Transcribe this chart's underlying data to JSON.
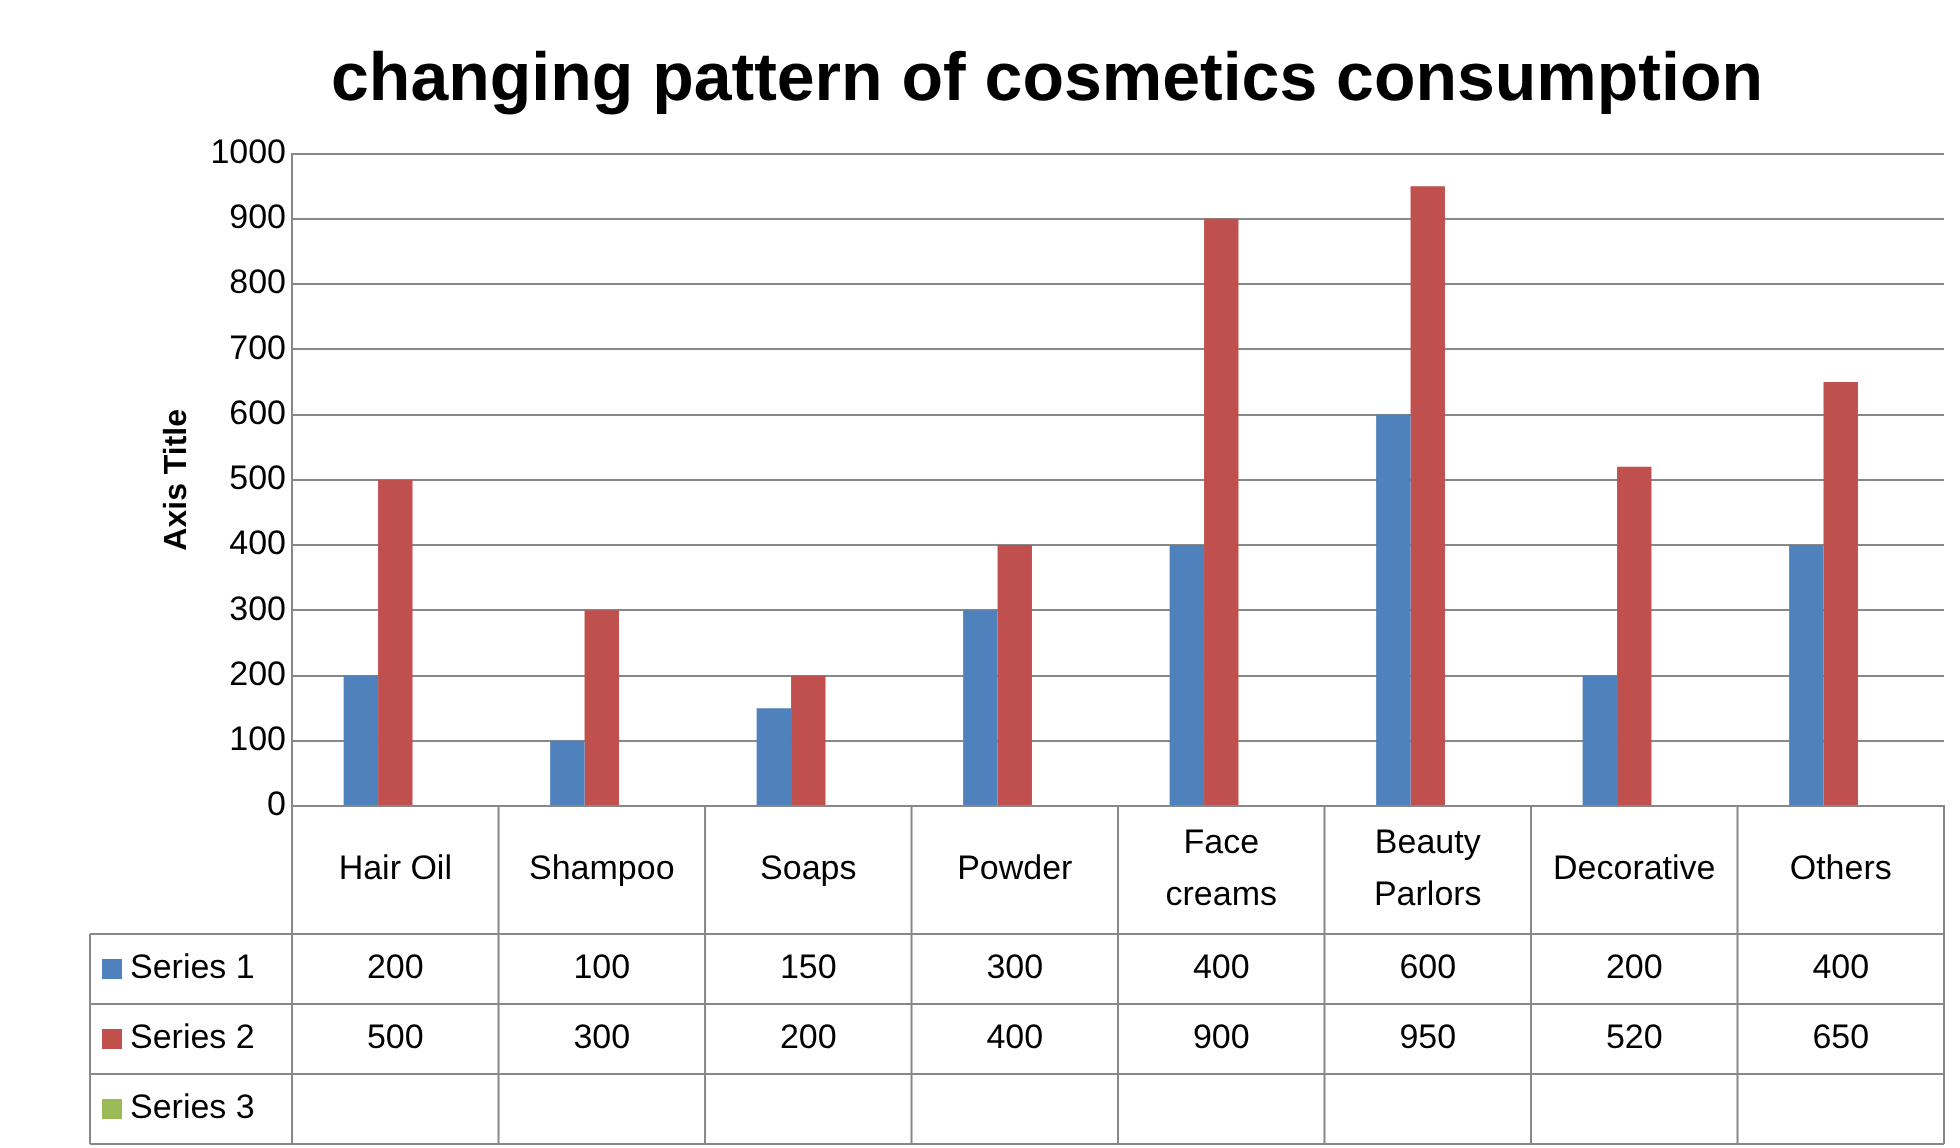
{
  "chart_data": {
    "type": "bar",
    "title": "changing pattern of cosmetics consumption",
    "ylabel": "Axis Title",
    "categories": [
      "Hair Oil",
      "Shampoo",
      "Soaps",
      "Powder",
      "Face creams",
      "Beauty Parlors",
      "Decorative",
      "Others"
    ],
    "series": [
      {
        "name": "Series 1",
        "color": "#4f81bd",
        "values": [
          200,
          100,
          150,
          300,
          400,
          600,
          200,
          400
        ]
      },
      {
        "name": "Series 2",
        "color": "#c0504d",
        "values": [
          500,
          300,
          200,
          400,
          900,
          950,
          520,
          650
        ]
      },
      {
        "name": "Series 3",
        "color": "#9bbb59",
        "values": [
          null,
          null,
          null,
          null,
          null,
          null,
          null,
          null
        ]
      }
    ],
    "ylim": [
      0,
      1000
    ],
    "yticks": [
      0,
      100,
      200,
      300,
      400,
      500,
      600,
      700,
      800,
      900,
      1000
    ],
    "grid": "y",
    "legend": "bottom",
    "data_labels": true
  }
}
